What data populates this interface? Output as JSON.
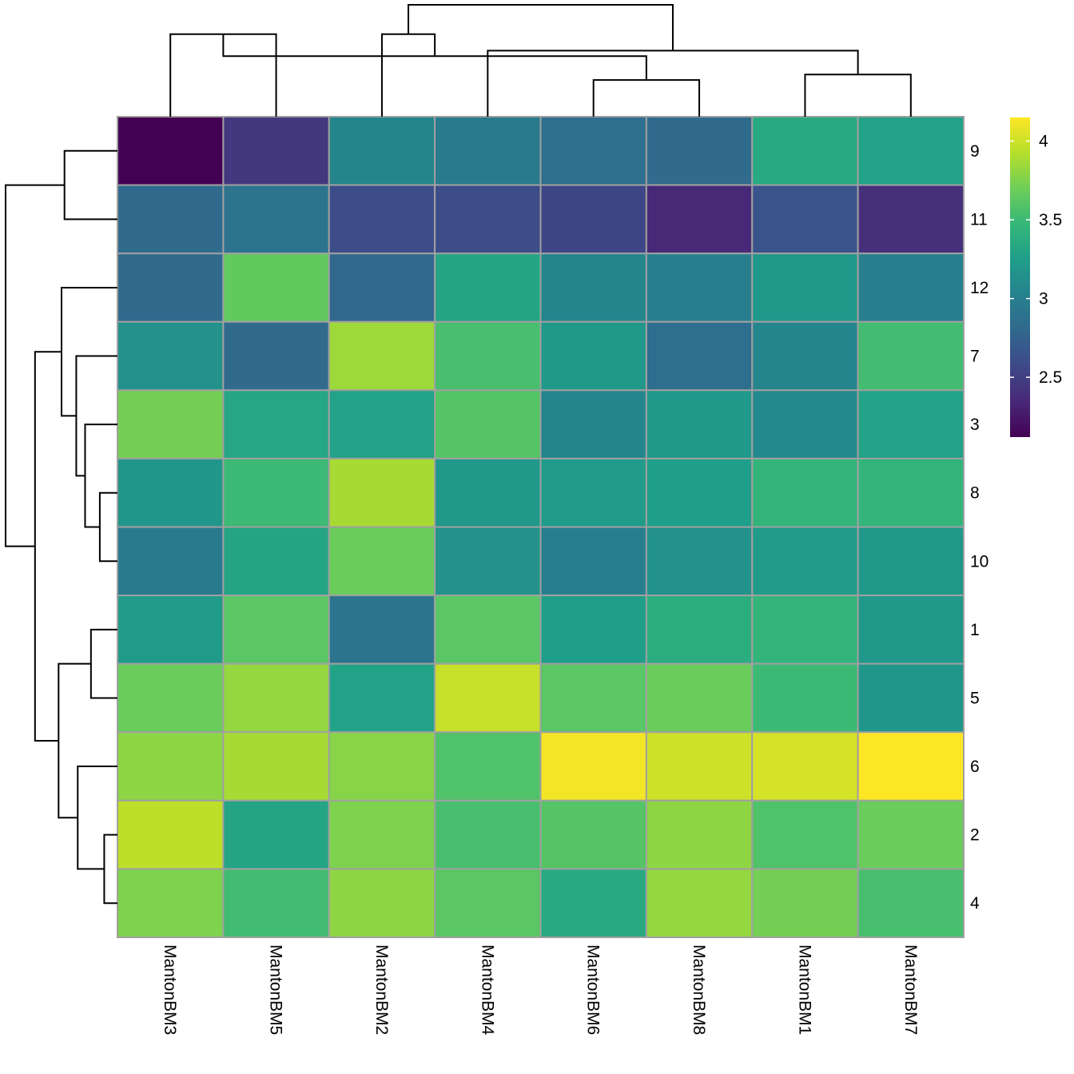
{
  "chart_data": {
    "type": "heatmap",
    "title": "",
    "columns": [
      "MantonBM3",
      "MantonBM5",
      "MantonBM2",
      "MantonBM4",
      "MantonBM6",
      "MantonBM8",
      "MantonBM1",
      "MantonBM7"
    ],
    "rows": [
      "9",
      "11",
      "12",
      "7",
      "3",
      "8",
      "10",
      "1",
      "5",
      "6",
      "2",
      "4"
    ],
    "values": [
      [
        2.12,
        2.45,
        3.05,
        2.95,
        2.85,
        2.82,
        3.35,
        3.28
      ],
      [
        2.82,
        2.9,
        2.6,
        2.6,
        2.55,
        2.35,
        2.65,
        2.4
      ],
      [
        2.82,
        3.65,
        2.8,
        3.3,
        3.05,
        3.0,
        3.2,
        3.0
      ],
      [
        3.15,
        2.82,
        3.85,
        3.55,
        3.2,
        2.85,
        3.05,
        3.52
      ],
      [
        3.72,
        3.32,
        3.28,
        3.6,
        3.05,
        3.2,
        3.08,
        3.28
      ],
      [
        3.18,
        3.5,
        3.88,
        3.2,
        3.22,
        3.25,
        3.45,
        3.45
      ],
      [
        2.95,
        3.3,
        3.68,
        3.15,
        3.0,
        3.15,
        3.22,
        3.2
      ],
      [
        3.22,
        3.62,
        2.9,
        3.62,
        3.25,
        3.38,
        3.45,
        3.2
      ],
      [
        3.68,
        3.82,
        3.28,
        3.98,
        3.62,
        3.68,
        3.5,
        3.18
      ],
      [
        3.8,
        3.88,
        3.78,
        3.58,
        4.12,
        4.0,
        4.02,
        4.15
      ],
      [
        3.95,
        3.3,
        3.75,
        3.55,
        3.6,
        3.8,
        3.58,
        3.68
      ],
      [
        3.75,
        3.52,
        3.8,
        3.62,
        3.35,
        3.82,
        3.72,
        3.55
      ]
    ],
    "color_scale": {
      "name": "viridis",
      "min": 2.12,
      "max": 4.15,
      "stops": [
        "#440154",
        "#482878",
        "#3e4989",
        "#31688e",
        "#26828e",
        "#1f9e89",
        "#35b779",
        "#6ece58",
        "#b5de2b",
        "#fde725"
      ]
    },
    "legend": {
      "position": "right",
      "ticks": [
        "2.5",
        "3",
        "3.5",
        "4"
      ],
      "tick_values": [
        2.5,
        3.0,
        3.5,
        4.0
      ]
    },
    "cell_border_color": "#a0a0a0",
    "dendrogram_color": "#000000",
    "col_dendrogram": [
      {
        "a": 0,
        "b": 1,
        "h": 0.45
      },
      {
        "a": 4,
        "b": 5,
        "h": 0.2
      },
      {
        "a": 6,
        "b": 7,
        "h": 0.23
      },
      {
        "a": 8,
        "b": 9,
        "h": 0.33
      },
      {
        "a": 3,
        "b": 10,
        "h": 0.36
      },
      {
        "a": 2,
        "b": 11,
        "h": 0.45
      },
      {
        "a": 12,
        "b": 13,
        "h": 0.61
      }
    ],
    "row_dendrogram": [
      {
        "a": 0,
        "b": 1,
        "h": 0.36
      },
      {
        "a": 5,
        "b": 6,
        "h": 0.12
      },
      {
        "a": 4,
        "b": 13,
        "h": 0.22
      },
      {
        "a": 3,
        "b": 14,
        "h": 0.28
      },
      {
        "a": 2,
        "b": 15,
        "h": 0.38
      },
      {
        "a": 7,
        "b": 8,
        "h": 0.18
      },
      {
        "a": 10,
        "b": 11,
        "h": 0.09
      },
      {
        "a": 9,
        "b": 18,
        "h": 0.27
      },
      {
        "a": 17,
        "b": 19,
        "h": 0.4
      },
      {
        "a": 16,
        "b": 20,
        "h": 0.56
      },
      {
        "a": 12,
        "b": 21,
        "h": 0.76
      }
    ]
  }
}
